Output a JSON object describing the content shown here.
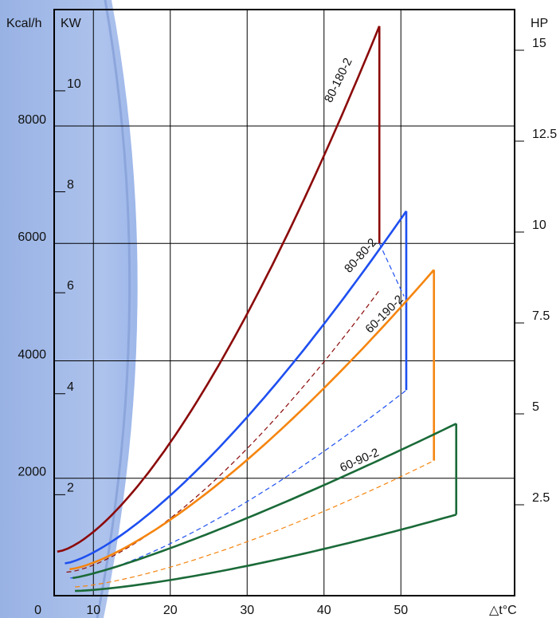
{
  "colors": {
    "bg_blue": "#a9bfe8",
    "grid": "#000000",
    "series_80_180_2": "#8b0a0a",
    "series_80_80_2": "#1e4ff0",
    "series_60_190_2": "#f5850f",
    "series_60_90_2": "#1a6a38"
  },
  "chart_data": {
    "type": "line",
    "axis_labels": {
      "left_kcal": "Kcal/h",
      "left_kw": "KW",
      "right_hp": "HP",
      "x": "△t°C"
    },
    "x_axis": {
      "range": [
        5,
        58
      ],
      "ticks": [
        "10",
        "20",
        "30",
        "40",
        "50"
      ]
    },
    "y_axis_kcal": {
      "range": [
        0,
        10600
      ],
      "ticks": [
        "0",
        "2000",
        "4000",
        "6000",
        "8000"
      ]
    },
    "y_axis_kw": {
      "ticks": [
        "2",
        "4",
        "6",
        "8",
        "10"
      ]
    },
    "y_axis_hp": {
      "ticks": [
        "2.5",
        "5",
        "7.5",
        "10",
        "12.5",
        "15"
      ]
    },
    "grid": true,
    "series": [
      {
        "name": "80-180-2",
        "color": "#8b0a0a",
        "upper_start": [
          5.3,
          750
        ],
        "upper_end": [
          47.2,
          9700
        ],
        "upper_exp": 1.5,
        "vertical_x": 47.2,
        "vertical_low": 6000,
        "dashed_start": [
          6.5,
          400
        ],
        "dashed_end": [
          47.2,
          5200
        ],
        "dashed_exp": 1.5
      },
      {
        "name": "80-80-2",
        "color": "#1e4ff0",
        "upper_start": [
          6.3,
          550
        ],
        "upper_end": [
          50.7,
          6550
        ],
        "upper_exp": 1.4,
        "vertical_x": 50.7,
        "vertical_low": 3500,
        "dashed_start": [
          7.0,
          300
        ],
        "dashed_end": [
          50.7,
          3500
        ],
        "dashed_exp": 1.4,
        "extra_upper": [
          [
            47.2,
            6000
          ],
          [
            50.4,
            5100
          ]
        ]
      },
      {
        "name": "60-190-2",
        "color": "#f5850f",
        "upper_start": [
          6.9,
          450
        ],
        "upper_end": [
          54.3,
          5550
        ],
        "upper_exp": 1.4,
        "vertical_x": 54.3,
        "vertical_low": 2300,
        "dashed_start": [
          7.6,
          150
        ],
        "dashed_end": [
          54.3,
          2300
        ],
        "dashed_exp": 1.4
      },
      {
        "name": "60-90-2",
        "color": "#1a6a38",
        "upper_start": [
          7.3,
          300
        ],
        "upper_end": [
          57.2,
          2930
        ],
        "upper_exp": 1.2,
        "vertical_x": 57.2,
        "vertical_low": 1380,
        "lower_start": [
          7.6,
          80
        ],
        "lower_end": [
          57.2,
          1380
        ],
        "lower_exp": 1.4
      }
    ],
    "series_labels": [
      {
        "text": "80-180-2",
        "at": [
          42.3,
          8750
        ],
        "angle": -64
      },
      {
        "text": "80-80-2",
        "at": [
          45.1,
          5750
        ],
        "angle": -48
      },
      {
        "text": "60-190-2",
        "at": [
          48.2,
          4750
        ],
        "angle": -45
      },
      {
        "text": "60-90-2",
        "at": [
          44.8,
          2250
        ],
        "angle": -24
      }
    ]
  }
}
